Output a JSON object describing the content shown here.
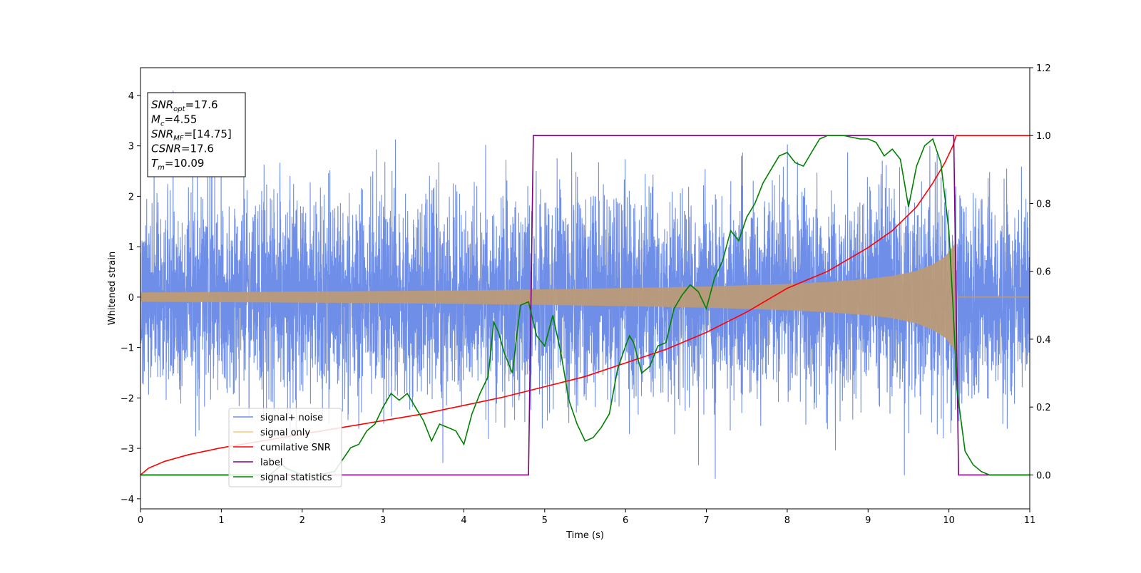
{
  "chart_data": {
    "type": "line",
    "title": "",
    "xlabel": "Time (s)",
    "ylabel": "Whitened strain",
    "y2label": "",
    "xlim": [
      0,
      11
    ],
    "ylim": [
      -4.2,
      4.55
    ],
    "y2lim": [
      -0.1,
      1.2
    ],
    "xticks": [
      0,
      1,
      2,
      3,
      4,
      5,
      6,
      7,
      8,
      9,
      10,
      11
    ],
    "xtick_labels": [
      "0",
      "1",
      "2",
      "3",
      "4",
      "5",
      "6",
      "7",
      "8",
      "9",
      "10",
      "11"
    ],
    "yticks": [
      -4,
      -3,
      -2,
      -1,
      0,
      1,
      2,
      3,
      4
    ],
    "ytick_labels": [
      "−4",
      "−3",
      "−2",
      "−1",
      "0",
      "1",
      "2",
      "3",
      "4"
    ],
    "y2ticks": [
      0.0,
      0.2,
      0.4,
      0.6,
      0.8,
      1.0,
      1.2
    ],
    "y2tick_labels": [
      "0.0",
      "0.2",
      "0.4",
      "0.6",
      "0.8",
      "1.0",
      "1.2"
    ],
    "grid": false,
    "legend_position": "lower-left",
    "colors": {
      "signal_noise": "#6f8ee8",
      "signal_only": "#f5c77e",
      "signal_overlap": "#bb9b78",
      "cumulative_snr": "#ff0000",
      "label": "#800080",
      "signal_statistics": "#008000"
    },
    "legend": [
      {
        "key": "signal_noise",
        "label": "signal+ noise"
      },
      {
        "key": "signal_only",
        "label": "signal only"
      },
      {
        "key": "cumulative_snr",
        "label": "cumilative SNR"
      },
      {
        "key": "label",
        "label": "label"
      },
      {
        "key": "signal_statistics",
        "label": "signal statistics"
      }
    ],
    "info_box": [
      {
        "main": "SNR",
        "sub": "opt",
        "rest": "=17.6"
      },
      {
        "main": "M",
        "sub": "c",
        "rest": "=4.55"
      },
      {
        "main": "SNR",
        "sub": "MF",
        "rest": "=[14.75]"
      },
      {
        "main": "CSNR",
        "sub": "",
        "rest": "=17.6"
      },
      {
        "main": "T",
        "sub": "m",
        "rest": "=10.09"
      }
    ],
    "series": [
      {
        "name": "signal+ noise",
        "axis": "left",
        "noise_std": 1.0,
        "peak_min": -3.7,
        "peak_max": 4.2,
        "x_range": [
          0,
          11
        ]
      },
      {
        "name": "signal only",
        "axis": "left",
        "envelope": {
          "x": [
            0,
            1,
            2,
            3,
            4,
            5,
            6,
            7,
            8,
            8.5,
            9,
            9.3,
            9.6,
            9.8,
            9.95,
            10.05,
            10.09,
            10.1,
            11
          ],
          "amp": [
            0.09,
            0.1,
            0.11,
            0.12,
            0.135,
            0.155,
            0.18,
            0.21,
            0.26,
            0.3,
            0.36,
            0.42,
            0.52,
            0.65,
            0.8,
            1.0,
            1.1,
            0.0,
            0.0
          ]
        }
      },
      {
        "name": "cumilative SNR",
        "axis": "right",
        "x": [
          0,
          0.1,
          0.3,
          0.6,
          1,
          1.5,
          2,
          2.5,
          3,
          3.5,
          4,
          4.5,
          5,
          5.5,
          6,
          6.5,
          7,
          7.5,
          8,
          8.5,
          9,
          9.3,
          9.6,
          9.8,
          9.95,
          10.05,
          10.09,
          10.1,
          11
        ],
        "y": [
          0.0,
          0.02,
          0.04,
          0.06,
          0.08,
          0.1,
          0.12,
          0.14,
          0.16,
          0.18,
          0.205,
          0.23,
          0.26,
          0.29,
          0.33,
          0.37,
          0.42,
          0.48,
          0.55,
          0.6,
          0.67,
          0.72,
          0.79,
          0.86,
          0.92,
          0.97,
          1.0,
          1.0,
          1.0
        ]
      },
      {
        "name": "label",
        "axis": "right",
        "x": [
          0,
          4.8,
          4.86,
          10.06,
          10.12,
          11
        ],
        "y": [
          0,
          0,
          1,
          1,
          0,
          0
        ]
      },
      {
        "name": "signal statistics",
        "axis": "right",
        "x": [
          0,
          1.6,
          1.75,
          1.8,
          1.9,
          2.0,
          2.2,
          2.4,
          2.6,
          2.7,
          2.8,
          2.9,
          3.0,
          3.1,
          3.2,
          3.3,
          3.4,
          3.5,
          3.6,
          3.7,
          3.8,
          3.9,
          4.0,
          4.1,
          4.2,
          4.3,
          4.37,
          4.43,
          4.5,
          4.6,
          4.7,
          4.8,
          4.9,
          5.0,
          5.1,
          5.2,
          5.3,
          5.4,
          5.5,
          5.6,
          5.7,
          5.8,
          5.9,
          6.0,
          6.05,
          6.1,
          6.2,
          6.3,
          6.4,
          6.5,
          6.6,
          6.7,
          6.8,
          6.9,
          7.0,
          7.1,
          7.2,
          7.3,
          7.4,
          7.5,
          7.6,
          7.7,
          7.8,
          7.9,
          8.0,
          8.1,
          8.2,
          8.3,
          8.4,
          8.5,
          8.7,
          8.9,
          9.0,
          9.1,
          9.2,
          9.3,
          9.4,
          9.5,
          9.6,
          9.7,
          9.8,
          9.9,
          10.0,
          10.05,
          10.1,
          10.2,
          10.3,
          10.4,
          10.5,
          10.7,
          11
        ],
        "y": [
          0,
          0,
          0.03,
          0.02,
          0.01,
          0.0,
          0.0,
          0.01,
          0.08,
          0.09,
          0.13,
          0.15,
          0.2,
          0.24,
          0.22,
          0.24,
          0.2,
          0.16,
          0.1,
          0.15,
          0.14,
          0.13,
          0.09,
          0.18,
          0.24,
          0.29,
          0.45,
          0.42,
          0.36,
          0.3,
          0.5,
          0.51,
          0.41,
          0.38,
          0.47,
          0.36,
          0.22,
          0.15,
          0.1,
          0.11,
          0.14,
          0.18,
          0.31,
          0.38,
          0.41,
          0.39,
          0.3,
          0.32,
          0.38,
          0.39,
          0.49,
          0.53,
          0.56,
          0.54,
          0.49,
          0.58,
          0.63,
          0.72,
          0.69,
          0.76,
          0.8,
          0.86,
          0.9,
          0.94,
          0.95,
          0.92,
          0.91,
          0.95,
          0.99,
          1.0,
          1.0,
          0.99,
          0.99,
          0.98,
          0.94,
          0.96,
          0.93,
          0.79,
          0.91,
          0.97,
          0.99,
          0.92,
          0.72,
          0.5,
          0.25,
          0.07,
          0.03,
          0.01,
          0.0,
          0.0,
          0.0
        ]
      }
    ]
  }
}
